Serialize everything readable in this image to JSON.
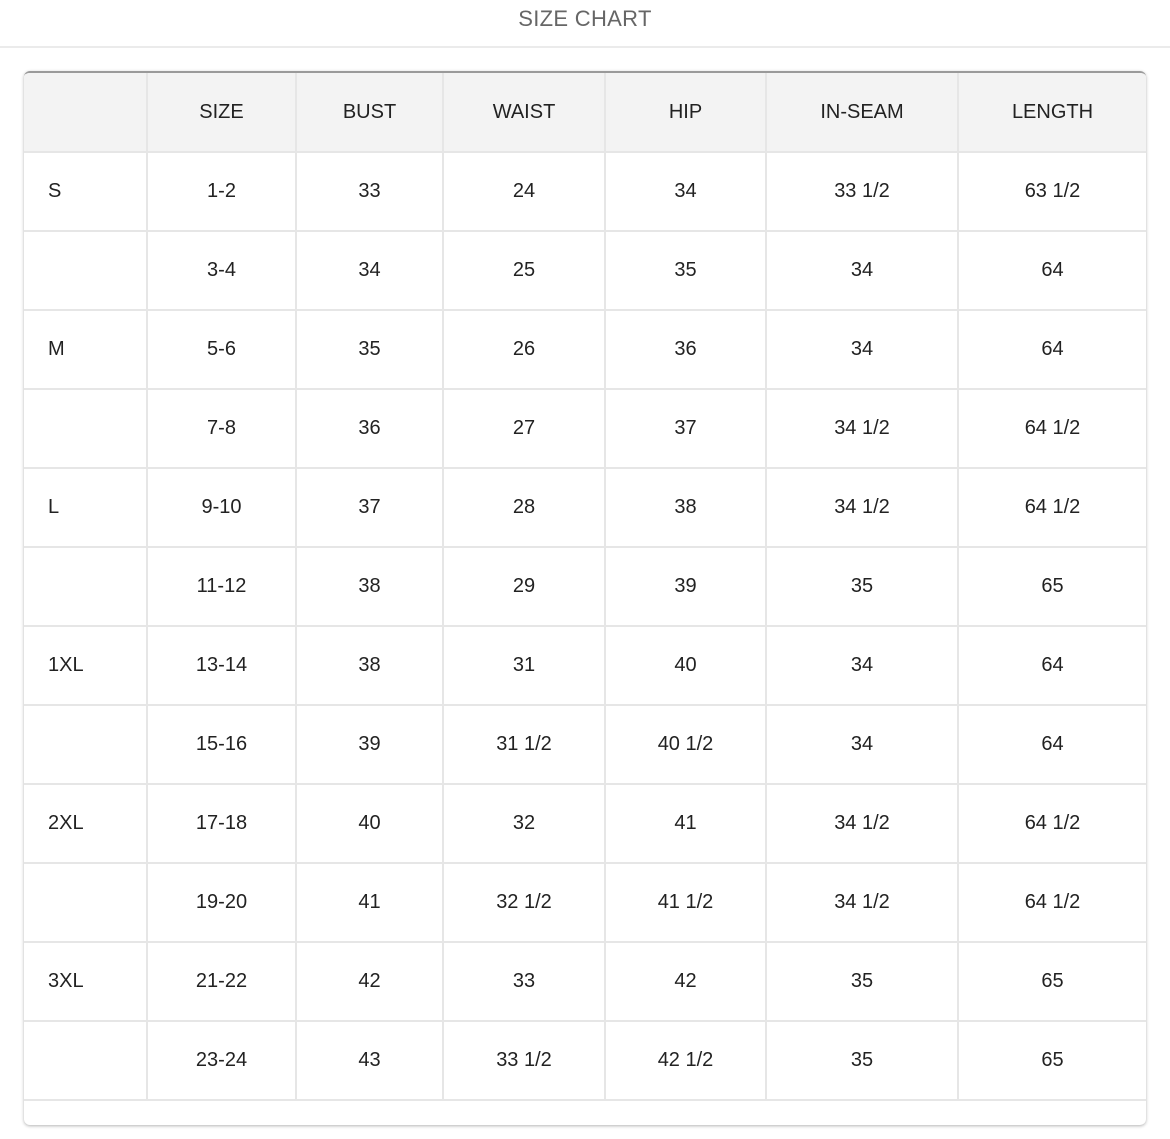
{
  "title": "SIZE CHART",
  "columns": [
    "",
    "SIZE",
    "BUST",
    "WAIST",
    "HIP",
    "IN-SEAM",
    "LENGTH"
  ],
  "rows": [
    [
      "S",
      "1-2",
      "33",
      "24",
      "34",
      "33 1/2",
      "63 1/2"
    ],
    [
      "",
      "3-4",
      "34",
      "25",
      "35",
      "34",
      "64"
    ],
    [
      "M",
      "5-6",
      "35",
      "26",
      "36",
      "34",
      "64"
    ],
    [
      "",
      "7-8",
      "36",
      "27",
      "37",
      "34 1/2",
      "64 1/2"
    ],
    [
      "L",
      "9-10",
      "37",
      "28",
      "38",
      "34 1/2",
      "64 1/2"
    ],
    [
      "",
      "11-12",
      "38",
      "29",
      "39",
      "35",
      "65"
    ],
    [
      "1XL",
      "13-14",
      "38",
      "31",
      "40",
      "34",
      "64"
    ],
    [
      "",
      "15-16",
      "39",
      "31 1/2",
      "40 1/2",
      "34",
      "64"
    ],
    [
      "2XL",
      "17-18",
      "40",
      "32",
      "41",
      "34 1/2",
      "64 1/2"
    ],
    [
      "",
      "19-20",
      "41",
      "32 1/2",
      "41 1/2",
      "34 1/2",
      "64 1/2"
    ],
    [
      "3XL",
      "21-22",
      "42",
      "33",
      "42",
      "35",
      "65"
    ],
    [
      "",
      "23-24",
      "43",
      "33 1/2",
      "42 1/2",
      "35",
      "65"
    ]
  ]
}
